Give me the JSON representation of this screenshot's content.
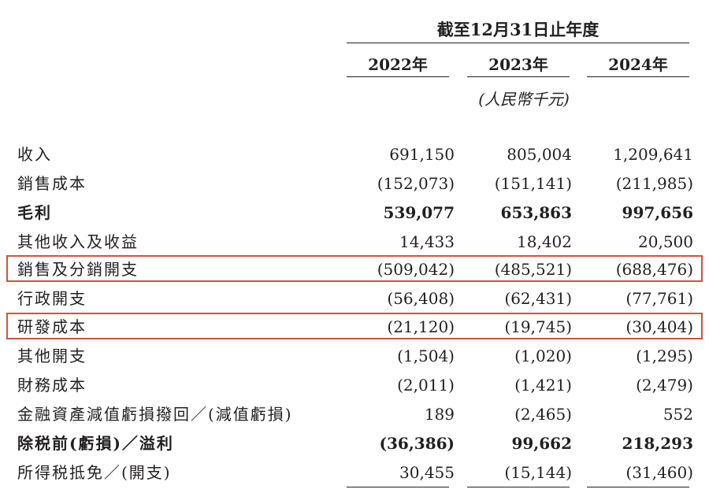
{
  "header": {
    "period": "截至12月31日止年度",
    "years": [
      "2022年",
      "2023年",
      "2024年"
    ],
    "unit": "(人民幣千元)"
  },
  "rows": [
    {
      "label": "收入",
      "v": [
        "691,150",
        "805,004",
        "1,209,641"
      ],
      "bold": false,
      "highlight": false
    },
    {
      "label": "銷售成本",
      "v": [
        "(152,073)",
        "(151,141)",
        "(211,985)"
      ],
      "bold": false,
      "highlight": false
    },
    {
      "label": "毛利",
      "v": [
        "539,077",
        "653,863",
        "997,656"
      ],
      "bold": true,
      "highlight": false
    },
    {
      "label": "其他收入及收益",
      "v": [
        "14,433",
        "18,402",
        "20,500"
      ],
      "bold": false,
      "highlight": false
    },
    {
      "label": "銷售及分銷開支",
      "v": [
        "(509,042)",
        "(485,521)",
        "(688,476)"
      ],
      "bold": false,
      "highlight": true
    },
    {
      "label": "行政開支",
      "v": [
        "(56,408)",
        "(62,431)",
        "(77,761)"
      ],
      "bold": false,
      "highlight": false
    },
    {
      "label": "研發成本",
      "v": [
        "(21,120)",
        "(19,745)",
        "(30,404)"
      ],
      "bold": false,
      "highlight": true
    },
    {
      "label": "其他開支",
      "v": [
        "(1,504)",
        "(1,020)",
        "(1,295)"
      ],
      "bold": false,
      "highlight": false
    },
    {
      "label": "財務成本",
      "v": [
        "(2,011)",
        "(1,421)",
        "(2,479)"
      ],
      "bold": false,
      "highlight": false
    },
    {
      "label": "金融資產減值虧損撥回／(減值虧損)",
      "v": [
        "189",
        "(2,465)",
        "552"
      ],
      "bold": false,
      "highlight": false
    },
    {
      "label": "除税前(虧損)／溢利",
      "v": [
        "(36,386)",
        "99,662",
        "218,293"
      ],
      "bold": true,
      "highlight": false
    },
    {
      "label": "所得税抵免／(開支)",
      "v": [
        "30,455",
        "(15,144)",
        "(31,460)"
      ],
      "bold": false,
      "highlight": false
    }
  ],
  "colors": {
    "text": "#231f20",
    "highlight_border": "#d1543c"
  }
}
